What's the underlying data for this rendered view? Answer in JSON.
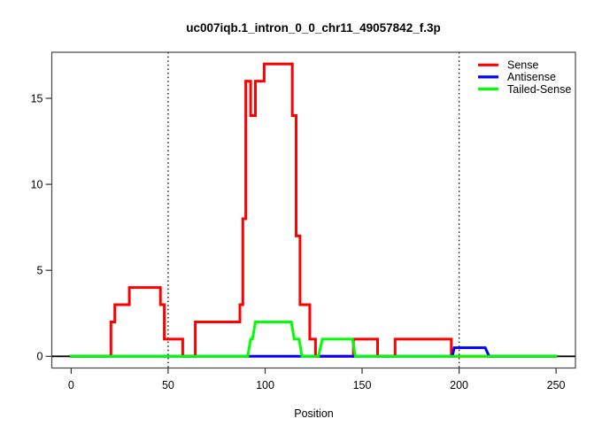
{
  "chart_data": {
    "type": "line",
    "subtype": "step-coverage-plot",
    "title": "uc007iqb.1_intron_0_0_chr11_49057842_f.3p",
    "xlabel": "Position",
    "ylabel": "",
    "x_ticks": [
      0,
      50,
      100,
      150,
      200,
      250
    ],
    "y_ticks": [
      0,
      5,
      10,
      15
    ],
    "xlim": [
      0,
      250
    ],
    "ylim": [
      0,
      17
    ],
    "axis_expansion": 0.04,
    "grid": false,
    "legend_position": "top-right",
    "reference_lines": {
      "vertical_dotted": [
        50,
        200
      ],
      "vertical_color": "#000000",
      "horizontal_zero": 0,
      "horizontal_zero_color": "#000000"
    },
    "series": [
      {
        "name": "Sense",
        "color": "#FF0000",
        "points": [
          [
            0,
            0
          ],
          [
            20.5,
            0
          ],
          [
            20.5,
            2
          ],
          [
            22.5,
            2
          ],
          [
            22.5,
            3
          ],
          [
            30,
            3
          ],
          [
            30,
            4
          ],
          [
            46,
            4
          ],
          [
            46,
            3
          ],
          [
            48,
            3
          ],
          [
            48,
            1
          ],
          [
            57.5,
            1
          ],
          [
            57.5,
            0
          ],
          [
            64,
            0
          ],
          [
            64,
            2
          ],
          [
            87,
            2
          ],
          [
            87,
            3
          ],
          [
            88.5,
            3
          ],
          [
            88.5,
            8
          ],
          [
            90,
            8
          ],
          [
            90,
            16
          ],
          [
            92.5,
            16
          ],
          [
            92.5,
            14
          ],
          [
            95,
            14
          ],
          [
            95,
            16
          ],
          [
            99.5,
            16
          ],
          [
            99.5,
            17
          ],
          [
            114,
            17
          ],
          [
            114,
            14
          ],
          [
            116,
            14
          ],
          [
            116,
            7
          ],
          [
            118,
            7
          ],
          [
            118,
            3
          ],
          [
            123,
            3
          ],
          [
            123,
            1
          ],
          [
            126,
            1
          ],
          [
            126,
            0
          ],
          [
            145.5,
            0
          ],
          [
            145.5,
            1
          ],
          [
            158,
            1
          ],
          [
            158,
            0
          ],
          [
            167,
            0
          ],
          [
            167,
            1
          ],
          [
            196,
            1
          ],
          [
            196,
            0
          ],
          [
            250,
            0
          ]
        ]
      },
      {
        "name": "Antisense",
        "color": "#0000FF",
        "points": [
          [
            0,
            0
          ],
          [
            196.5,
            0
          ],
          [
            197.5,
            0.5
          ],
          [
            213.5,
            0.5
          ],
          [
            215.5,
            0
          ],
          [
            250,
            0
          ]
        ]
      },
      {
        "name": "Tailed-Sense",
        "color": "#00FF00",
        "points": [
          [
            0,
            0
          ],
          [
            91,
            0
          ],
          [
            92.5,
            1
          ],
          [
            93.5,
            1
          ],
          [
            95,
            2
          ],
          [
            113.5,
            2
          ],
          [
            115,
            1
          ],
          [
            117.5,
            1
          ],
          [
            119,
            0
          ],
          [
            127.5,
            0
          ],
          [
            129.5,
            1
          ],
          [
            145,
            1
          ],
          [
            146.5,
            0
          ],
          [
            250,
            0
          ]
        ]
      }
    ]
  }
}
